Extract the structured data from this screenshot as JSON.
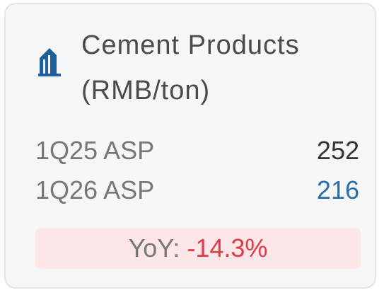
{
  "card": {
    "title_line1": "Cement Products",
    "title_line2": "(RMB/ton)",
    "rows": [
      {
        "label": "1Q25 ASP",
        "value": "252"
      },
      {
        "label": "1Q26 ASP",
        "value": "216"
      }
    ],
    "yoy": {
      "label": "YoY:",
      "value": "-14.3%"
    }
  }
}
